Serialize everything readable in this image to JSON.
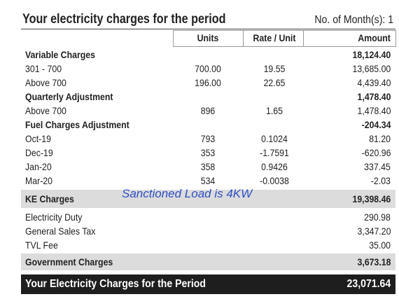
{
  "header": {
    "title": "Your electricity charges for the period",
    "months": "No. of Month(s): 1"
  },
  "columns": [
    "Units",
    "Rate / Unit",
    "Amount"
  ],
  "charges": [
    {
      "heading": "Variable Charges",
      "amount": "18,124.40",
      "items": [
        {
          "label": "301 - 700",
          "units": "700.00",
          "rate": "19.55",
          "amount": "13,685.00"
        },
        {
          "label": "Above 700",
          "units": "196.00",
          "rate": "22.65",
          "amount": "4,439.40"
        }
      ]
    },
    {
      "heading": "Quarterly Adjustment",
      "amount": "1,478.40",
      "items": [
        {
          "label": "Above 700",
          "units": "896",
          "rate": "1.65",
          "amount": "1,478.40"
        }
      ]
    },
    {
      "heading": "Fuel Charges Adjustment",
      "amount": "-204.34",
      "items": [
        {
          "label": "Oct-19",
          "units": "793",
          "rate": "0.1024",
          "amount": "81.20"
        },
        {
          "label": "Dec-19",
          "units": "353",
          "rate": "-1.7591",
          "amount": "-620.96"
        },
        {
          "label": "Jan-20",
          "units": "358",
          "rate": "0.9426",
          "amount": "337.45"
        },
        {
          "label": "Mar-20",
          "units": "534",
          "rate": "-0.0038",
          "amount": "-2.03"
        }
      ]
    }
  ],
  "ke_charges": {
    "label": "KE Charges",
    "amount": "19,398.46"
  },
  "annotation": "Sanctioned Load is 4KW",
  "government": [
    {
      "label": "Electricity Duty",
      "amount": "290.98"
    },
    {
      "label": "General Sales Tax",
      "amount": "3,347.20"
    },
    {
      "label": "TVL Fee",
      "amount": "35.00"
    }
  ],
  "government_charges": {
    "label": "Government Charges",
    "amount": "3,673.18"
  },
  "total": {
    "label": "Your Electricity Charges for the Period",
    "amount": "23,071.64"
  }
}
